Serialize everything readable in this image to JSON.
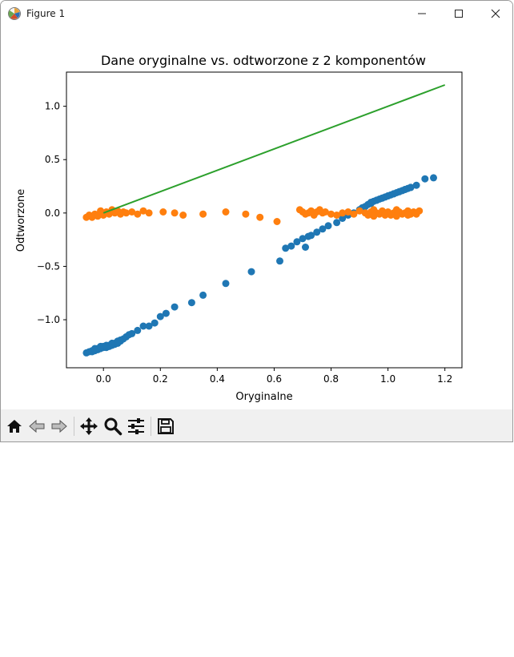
{
  "window": {
    "title": "Figure 1",
    "controls": [
      "minimize",
      "maximize",
      "close"
    ]
  },
  "toolbar": {
    "buttons": [
      {
        "name": "home-button",
        "icon": "home-icon",
        "tooltip": "Reset original view"
      },
      {
        "name": "back-button",
        "icon": "back-arrow-icon",
        "tooltip": "Back"
      },
      {
        "name": "forward-button",
        "icon": "forward-arrow-icon",
        "tooltip": "Forward"
      },
      {
        "name": "pan-button",
        "icon": "pan-move-icon",
        "tooltip": "Pan"
      },
      {
        "name": "zoom-button",
        "icon": "zoom-magnifier-icon",
        "tooltip": "Zoom"
      },
      {
        "name": "configure-subplots-button",
        "icon": "sliders-icon",
        "tooltip": "Configure subplots"
      },
      {
        "name": "save-button",
        "icon": "floppy-disk-icon",
        "tooltip": "Save"
      }
    ]
  },
  "colors": {
    "blue": "#1f77b4",
    "orange": "#ff7f0e",
    "green": "#2ca02c",
    "toolbar_bg": "#f0f0f0"
  },
  "chart_data": {
    "type": "scatter",
    "title": "Dane oryginalne vs. odtworzone z 2 komponentów",
    "xlabel": "Oryginalne",
    "ylabel": "Odtworzone",
    "xlim": [
      -0.13,
      1.26
    ],
    "ylim": [
      -1.45,
      1.32
    ],
    "xticks": [
      0.0,
      0.2,
      0.4,
      0.6,
      0.8,
      1.0,
      1.2
    ],
    "xtick_labels": [
      "0.0",
      "0.2",
      "0.4",
      "0.6",
      "0.8",
      "1.0",
      "1.2"
    ],
    "yticks": [
      -1.0,
      -0.5,
      0.0,
      0.5,
      1.0
    ],
    "ytick_labels": [
      "−1.0",
      "−0.5",
      "0.0",
      "0.5",
      "1.0"
    ],
    "grid": false,
    "series": [
      {
        "kind": "scatter",
        "color": "#1f77b4",
        "x": [
          -0.06,
          -0.05,
          -0.04,
          -0.04,
          -0.03,
          -0.03,
          -0.02,
          -0.02,
          -0.01,
          -0.01,
          0.0,
          0.0,
          0.01,
          0.01,
          0.02,
          0.02,
          0.03,
          0.03,
          0.04,
          0.04,
          0.05,
          0.05,
          0.06,
          0.06,
          -0.03,
          -0.01,
          0.01,
          0.03,
          0.05,
          0.07,
          0.08,
          0.09,
          0.1,
          0.12,
          0.14,
          0.16,
          0.18,
          0.2,
          0.22,
          0.25,
          0.31,
          0.35,
          0.43,
          0.52,
          0.62,
          0.64,
          0.66,
          0.68,
          0.7,
          0.71,
          0.72,
          0.73,
          0.75,
          0.77,
          0.79,
          0.82,
          0.84,
          0.86,
          0.88,
          0.9,
          0.91,
          0.92,
          0.93,
          0.94,
          0.95,
          0.96,
          0.97,
          0.98,
          0.99,
          1.0,
          1.01,
          1.02,
          1.03,
          1.04,
          1.05,
          1.06,
          1.07,
          1.08,
          0.94,
          0.96,
          0.98,
          1.0,
          1.02,
          1.04,
          1.06,
          1.08,
          1.1,
          1.13,
          1.16
        ],
        "y": [
          -1.31,
          -1.3,
          -1.3,
          -1.29,
          -1.29,
          -1.28,
          -1.28,
          -1.27,
          -1.27,
          -1.26,
          -1.26,
          -1.25,
          -1.26,
          -1.25,
          -1.24,
          -1.25,
          -1.23,
          -1.24,
          -1.22,
          -1.23,
          -1.22,
          -1.21,
          -1.2,
          -1.19,
          -1.27,
          -1.25,
          -1.24,
          -1.22,
          -1.2,
          -1.18,
          -1.16,
          -1.14,
          -1.13,
          -1.1,
          -1.06,
          -1.06,
          -1.03,
          -0.97,
          -0.94,
          -0.88,
          -0.84,
          -0.77,
          -0.66,
          -0.55,
          -0.45,
          -0.33,
          -0.31,
          -0.27,
          -0.24,
          -0.32,
          -0.22,
          -0.21,
          -0.18,
          -0.15,
          -0.12,
          -0.09,
          -0.05,
          -0.02,
          0.0,
          0.03,
          0.05,
          0.06,
          0.08,
          0.09,
          0.11,
          0.12,
          0.13,
          0.14,
          0.15,
          0.16,
          0.17,
          0.18,
          0.19,
          0.2,
          0.21,
          0.22,
          0.23,
          0.24,
          0.1,
          0.12,
          0.14,
          0.16,
          0.18,
          0.2,
          0.22,
          0.24,
          0.26,
          0.32,
          0.33
        ]
      },
      {
        "kind": "scatter",
        "color": "#ff7f0e",
        "x": [
          -0.06,
          -0.05,
          -0.04,
          -0.03,
          -0.02,
          -0.01,
          0.0,
          0.01,
          0.02,
          0.03,
          0.04,
          0.05,
          0.06,
          0.07,
          0.08,
          0.1,
          0.12,
          0.14,
          0.16,
          0.21,
          0.25,
          0.28,
          0.35,
          0.43,
          0.5,
          0.55,
          0.61,
          0.69,
          0.7,
          0.71,
          0.72,
          0.73,
          0.74,
          0.75,
          0.76,
          0.77,
          0.78,
          0.8,
          0.82,
          0.84,
          0.86,
          0.88,
          0.9,
          0.92,
          0.93,
          0.94,
          0.95,
          0.96,
          0.97,
          0.98,
          0.99,
          1.0,
          1.01,
          1.02,
          1.03,
          1.04,
          1.05,
          1.06,
          1.07,
          1.08,
          1.09,
          1.1,
          1.11,
          0.95,
          0.99,
          1.03,
          1.07,
          1.1
        ],
        "y": [
          -0.04,
          -0.02,
          -0.04,
          -0.01,
          -0.03,
          0.02,
          -0.02,
          0.01,
          -0.01,
          0.03,
          0.0,
          0.02,
          -0.01,
          0.01,
          0.0,
          0.01,
          -0.01,
          0.02,
          0.0,
          0.01,
          0.0,
          -0.02,
          -0.01,
          0.01,
          -0.01,
          -0.04,
          -0.08,
          0.03,
          0.01,
          -0.01,
          0.0,
          0.02,
          -0.02,
          0.01,
          0.03,
          0.0,
          0.01,
          -0.01,
          -0.02,
          0.0,
          0.01,
          -0.01,
          0.02,
          0.0,
          -0.02,
          0.01,
          0.03,
          0.0,
          -0.01,
          0.02,
          0.0,
          0.01,
          -0.02,
          0.0,
          0.03,
          0.01,
          -0.01,
          0.0,
          0.02,
          -0.01,
          0.01,
          0.0,
          0.02,
          -0.03,
          -0.02,
          -0.03,
          -0.02,
          -0.01
        ]
      },
      {
        "kind": "line",
        "color": "#2ca02c",
        "x": [
          0.0,
          1.2
        ],
        "y": [
          0.0,
          1.2
        ]
      }
    ]
  }
}
